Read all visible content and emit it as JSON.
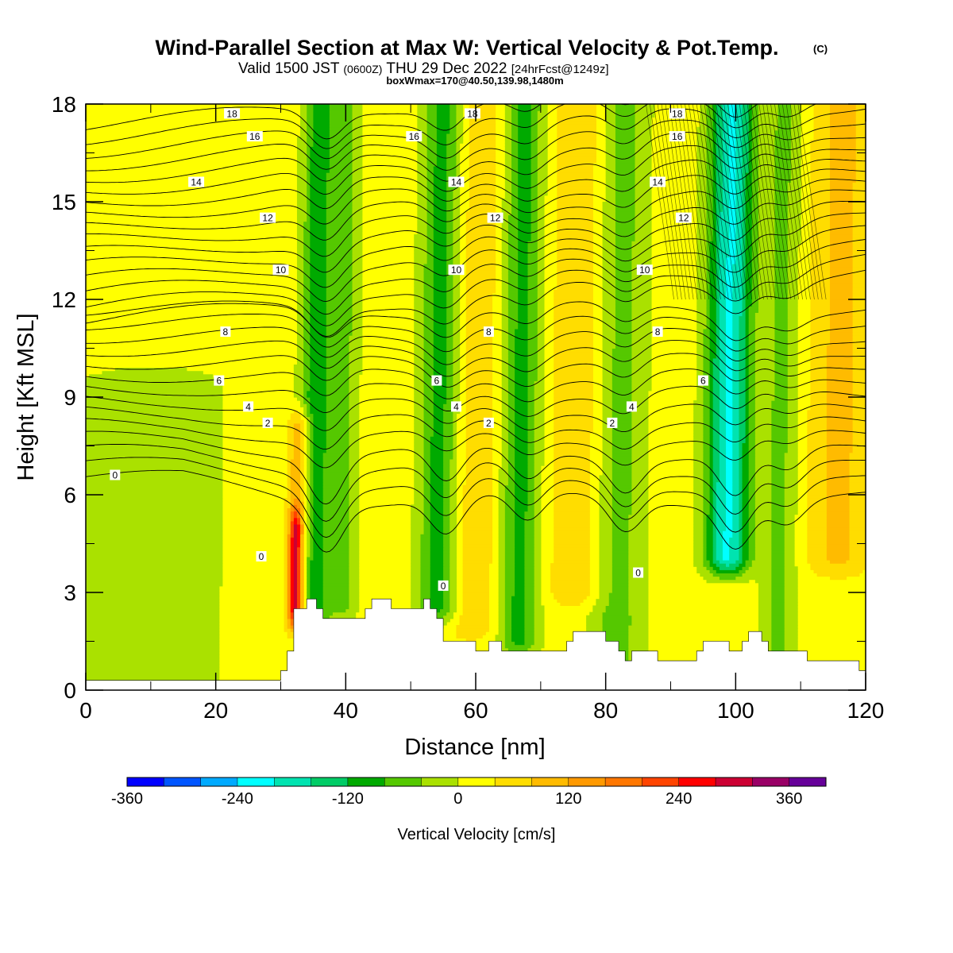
{
  "chart_data": {
    "type": "heatmap",
    "title": "Wind-Parallel Section at Max W: Vertical Velocity & Pot.Temp.",
    "copyright_mark": "(C)",
    "subtitle_main": "Valid 1500 JST",
    "subtitle_utc": "(0600Z)",
    "subtitle_date": "THU 29 Dec 2022",
    "subtitle_fcst": "[24hrFcst@1249z]",
    "box_info": "boxWmax=170@40.50,139.98,1480m",
    "xlabel": "Distance [nm]",
    "ylabel": "Height [Kft MSL]",
    "xlim": [
      0,
      120
    ],
    "ylim": [
      0,
      18
    ],
    "x_ticks": [
      "0",
      "20",
      "40",
      "60",
      "80",
      "100",
      "120"
    ],
    "y_ticks": [
      "0",
      "3",
      "6",
      "9",
      "12",
      "15",
      "18"
    ],
    "colorbar": {
      "label": "Vertical Velocity [cm/s]",
      "range": [
        -360,
        400
      ],
      "tick_labels": [
        "-360",
        "-240",
        "-120",
        "0",
        "120",
        "240",
        "360"
      ],
      "colors": [
        "#0000ff",
        "#0055ff",
        "#00aaff",
        "#00ffff",
        "#00e3b0",
        "#00cc66",
        "#00aa00",
        "#55c800",
        "#aae100",
        "#ffff00",
        "#ffdd00",
        "#ffbb00",
        "#ff9900",
        "#ff7700",
        "#ff4400",
        "#ff0000",
        "#cc0033",
        "#990066",
        "#660099"
      ]
    },
    "background_value_cms": 20,
    "vertical_velocity_bands": [
      {
        "center_nm": 35.5,
        "width_nm": 3.5,
        "top_kft": 18,
        "bottom_kft": 1.5,
        "value_cms": -110
      },
      {
        "center_nm": 40,
        "width_nm": 3,
        "top_kft": 18,
        "bottom_kft": 2.5,
        "value_cms": -45
      },
      {
        "center_nm": 54.5,
        "width_nm": 4.5,
        "top_kft": 18,
        "bottom_kft": 2.5,
        "value_cms": -100
      },
      {
        "center_nm": 67,
        "width_nm": 4.5,
        "top_kft": 18,
        "bottom_kft": 1.5,
        "value_cms": -95
      },
      {
        "center_nm": 82,
        "width_nm": 6,
        "top_kft": 18,
        "bottom_kft": 1,
        "value_cms": -60
      },
      {
        "center_nm": 99,
        "width_nm": 5,
        "top_kft": 18,
        "bottom_kft": 4,
        "value_cms": -205
      },
      {
        "center_nm": 107,
        "width_nm": 4,
        "top_kft": 18,
        "bottom_kft": 1,
        "value_cms": -50
      },
      {
        "center_nm": 10,
        "width_nm": 22,
        "top_kft": 9.5,
        "bottom_kft": 0.3,
        "value_cms": -15
      },
      {
        "center_nm": 33,
        "width_nm": 2.5,
        "top_kft": 8,
        "bottom_kft": 2,
        "value_cms": 140
      },
      {
        "center_nm": 32.5,
        "width_nm": 1.3,
        "top_kft": 5,
        "bottom_kft": 2.5,
        "value_cms": 230
      },
      {
        "center_nm": 60,
        "width_nm": 6,
        "top_kft": 18,
        "bottom_kft": 2,
        "value_cms": 70
      },
      {
        "center_nm": 76,
        "width_nm": 7,
        "top_kft": 18,
        "bottom_kft": 3,
        "value_cms": 75
      },
      {
        "center_nm": 116,
        "width_nm": 7,
        "top_kft": 18,
        "bottom_kft": 4,
        "value_cms": 90
      }
    ],
    "terrain_kft": [
      [
        0,
        0.3
      ],
      [
        30,
        0.3
      ],
      [
        30,
        0.6
      ],
      [
        31,
        0.6
      ],
      [
        31,
        1.2
      ],
      [
        32,
        1.2
      ],
      [
        32,
        2.5
      ],
      [
        34,
        2.5
      ],
      [
        34,
        2.8
      ],
      [
        35.5,
        2.8
      ],
      [
        35.5,
        2.5
      ],
      [
        36.5,
        2.5
      ],
      [
        36.5,
        2.2
      ],
      [
        43,
        2.2
      ],
      [
        43,
        2.5
      ],
      [
        44,
        2.5
      ],
      [
        44,
        2.8
      ],
      [
        47,
        2.8
      ],
      [
        47,
        2.5
      ],
      [
        52,
        2.5
      ],
      [
        52,
        2.8
      ],
      [
        53,
        2.8
      ],
      [
        53,
        2.5
      ],
      [
        54,
        2.5
      ],
      [
        54,
        2.2
      ],
      [
        55,
        2.2
      ],
      [
        55,
        1.5
      ],
      [
        60,
        1.5
      ],
      [
        60,
        1.2
      ],
      [
        62,
        1.2
      ],
      [
        62,
        1.5
      ],
      [
        64,
        1.5
      ],
      [
        64,
        1.2
      ],
      [
        74,
        1.2
      ],
      [
        74,
        1.5
      ],
      [
        75,
        1.5
      ],
      [
        75,
        1.8
      ],
      [
        80,
        1.8
      ],
      [
        80,
        1.5
      ],
      [
        82,
        1.5
      ],
      [
        82,
        1.2
      ],
      [
        83,
        1.2
      ],
      [
        83,
        0.9
      ],
      [
        84,
        0.9
      ],
      [
        84,
        1.2
      ],
      [
        88,
        1.2
      ],
      [
        88,
        0.9
      ],
      [
        94,
        0.9
      ],
      [
        94,
        1.2
      ],
      [
        95,
        1.2
      ],
      [
        95,
        1.5
      ],
      [
        99,
        1.5
      ],
      [
        99,
        1.2
      ],
      [
        101,
        1.2
      ],
      [
        101,
        1.5
      ],
      [
        102,
        1.5
      ],
      [
        102,
        1.8
      ],
      [
        104,
        1.8
      ],
      [
        104,
        1.5
      ],
      [
        105,
        1.5
      ],
      [
        105,
        1.2
      ],
      [
        111,
        1.2
      ],
      [
        111,
        0.9
      ],
      [
        119,
        0.9
      ],
      [
        119,
        0.6
      ],
      [
        120,
        0.6
      ],
      [
        120,
        0
      ]
    ],
    "theta_contours": [
      {
        "label": "0",
        "base_kft": 6.5,
        "label_x_nm": 4.5
      },
      {
        "label": "0",
        "base_kft": 4.0,
        "label_x_nm": 27
      },
      {
        "label": "0",
        "base_kft": 3.1,
        "label_x_nm": 55
      },
      {
        "label": "0",
        "base_kft": 3.5,
        "label_x_nm": 85
      },
      {
        "label": "2",
        "base_kft": 8.1,
        "label_x_nm": 28
      },
      {
        "label": "2",
        "base_kft": 8.1,
        "label_x_nm": 62
      },
      {
        "label": "2",
        "base_kft": 8.1,
        "label_x_nm": 81
      },
      {
        "label": "4",
        "base_kft": 8.6,
        "label_x_nm": 25
      },
      {
        "label": "4",
        "base_kft": 8.6,
        "label_x_nm": 57
      },
      {
        "label": "4",
        "base_kft": 8.6,
        "label_x_nm": 84
      },
      {
        "label": "6",
        "base_kft": 9.4,
        "label_x_nm": 20.5
      },
      {
        "label": "6",
        "base_kft": 9.4,
        "label_x_nm": 54
      },
      {
        "label": "6",
        "base_kft": 9.4,
        "label_x_nm": 95
      },
      {
        "label": "8",
        "base_kft": 10.9,
        "label_x_nm": 21.5
      },
      {
        "label": "8",
        "base_kft": 10.9,
        "label_x_nm": 62
      },
      {
        "label": "8",
        "base_kft": 10.9,
        "label_x_nm": 88
      },
      {
        "label": "10",
        "base_kft": 12.8,
        "label_x_nm": 30
      },
      {
        "label": "10",
        "base_kft": 12.8,
        "label_x_nm": 57
      },
      {
        "label": "10",
        "base_kft": 12.8,
        "label_x_nm": 86
      },
      {
        "label": "12",
        "base_kft": 14.4,
        "label_x_nm": 28
      },
      {
        "label": "12",
        "base_kft": 14.4,
        "label_x_nm": 63
      },
      {
        "label": "12",
        "base_kft": 14.4,
        "label_x_nm": 92
      },
      {
        "label": "14",
        "base_kft": 15.5,
        "label_x_nm": 17
      },
      {
        "label": "14",
        "base_kft": 15.5,
        "label_x_nm": 57
      },
      {
        "label": "14",
        "base_kft": 15.5,
        "label_x_nm": 88
      },
      {
        "label": "16",
        "base_kft": 16.9,
        "label_x_nm": 26
      },
      {
        "label": "16",
        "base_kft": 16.9,
        "label_x_nm": 50.5
      },
      {
        "label": "16",
        "base_kft": 16.9,
        "label_x_nm": 91
      },
      {
        "label": "18",
        "base_kft": 17.6,
        "label_x_nm": 22.5
      },
      {
        "label": "18",
        "base_kft": 17.6,
        "label_x_nm": 59.5
      },
      {
        "label": "18",
        "base_kft": 17.6,
        "label_x_nm": 91
      }
    ]
  }
}
